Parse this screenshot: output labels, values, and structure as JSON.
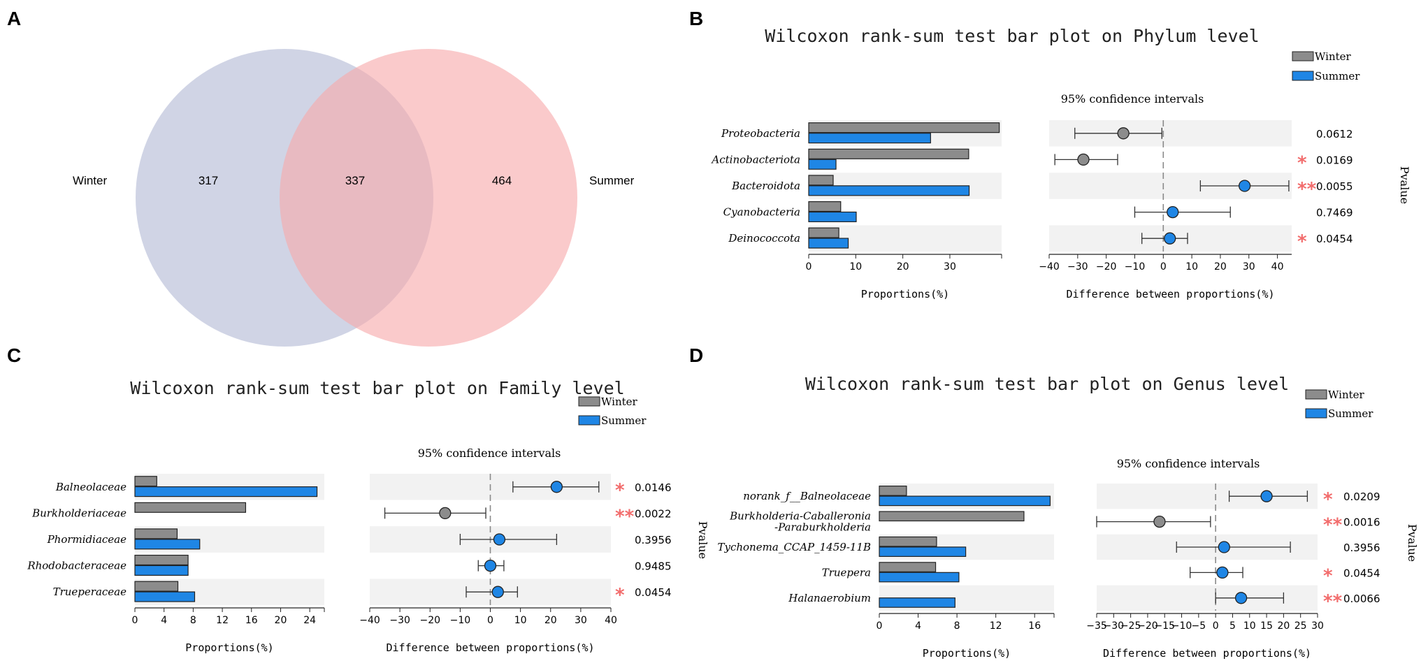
{
  "panel_labels": [
    "A",
    "B",
    "C",
    "D"
  ],
  "venn": {
    "left_label": "Winter",
    "right_label": "Summer",
    "left_only": "317",
    "overlap": "337",
    "right_only": "464",
    "left_color": "#c8cce0",
    "right_color": "#f7a9ab"
  },
  "colors": {
    "winter": "#8c8c8c",
    "summer": "#1f86e5",
    "stripe": "#f2f2f2",
    "significance": "#f26d6d"
  },
  "chart_data": [
    {
      "type": "bar",
      "panel": "B",
      "title": "Wilcoxon rank-sum test bar plot on Phylum level",
      "legend": [
        "Winter",
        "Summer"
      ],
      "ci_label": "95% confidence intervals",
      "xlabel": "Proportions(%)",
      "xlabel_diff": "Difference between proportions(%)",
      "pvalue_label": "Pvalue",
      "categories": [
        "Proteobacteria",
        "Actinobacteriota",
        "Bacteroidota",
        "Cyanobacteria",
        "Deinococcota"
      ],
      "series": [
        {
          "name": "Winter",
          "values": [
            40.5,
            34.0,
            5.2,
            6.8,
            6.4
          ]
        },
        {
          "name": "Summer",
          "values": [
            25.9,
            5.8,
            34.1,
            10.1,
            8.4
          ]
        }
      ],
      "xlim": [
        0,
        41
      ],
      "xticks": [
        "0",
        "10",
        "20",
        "30"
      ],
      "diff": {
        "estimates": [
          -14,
          -28,
          28.5,
          3.3,
          2.3
        ],
        "ci_low": [
          -31,
          -38,
          13,
          -10,
          -7.5
        ],
        "ci_high": [
          -0.5,
          -16,
          44,
          23.5,
          8.5
        ],
        "xlim": [
          -40,
          45
        ],
        "xticks": [
          "-40",
          "-30",
          "-20",
          "-10",
          "0",
          "10",
          "20",
          "30",
          "40"
        ]
      },
      "pvalues": [
        "0.0612",
        "0.0169",
        "0.0055",
        "0.7469",
        "0.0454"
      ],
      "significance": [
        "",
        "*",
        "**",
        "",
        "*"
      ]
    },
    {
      "type": "bar",
      "panel": "C",
      "title": "Wilcoxon rank-sum test bar plot on Family level",
      "legend": [
        "Winter",
        "Summer"
      ],
      "ci_label": "95% confidence intervals",
      "xlabel": "Proportions(%)",
      "xlabel_diff": "Difference between proportions(%)",
      "pvalue_label": "Pvalue",
      "categories": [
        "Balneolaceae",
        "Burkholderiaceae",
        "Phormidiaceae",
        "Rhodobacteraceae",
        "Trueperaceae"
      ],
      "series": [
        {
          "name": "Winter",
          "values": [
            3.0,
            15.2,
            5.8,
            7.3,
            5.9
          ]
        },
        {
          "name": "Summer",
          "values": [
            25.0,
            0,
            8.9,
            7.3,
            8.2
          ]
        }
      ],
      "xlim": [
        0,
        26
      ],
      "xticks": [
        "0",
        "4",
        "8",
        "12",
        "16",
        "20",
        "24"
      ],
      "diff": {
        "estimates": [
          22,
          -15,
          3,
          0,
          2.5
        ],
        "ci_low": [
          7.5,
          -35,
          -10,
          -4,
          -8
        ],
        "ci_high": [
          36,
          -1.5,
          22,
          4.5,
          9
        ],
        "xlim": [
          -40,
          40
        ],
        "xticks": [
          "-40",
          "-30",
          "-20",
          "-10",
          "0",
          "10",
          "20",
          "30",
          "40"
        ]
      },
      "pvalues": [
        "0.0146",
        "0.0022",
        "0.3956",
        "0.9485",
        "0.0454"
      ],
      "significance": [
        "*",
        "**",
        "",
        "",
        "*"
      ]
    },
    {
      "type": "bar",
      "panel": "D",
      "title": "Wilcoxon rank-sum test bar plot on Genus level",
      "legend": [
        "Winter",
        "Summer"
      ],
      "ci_label": "95% confidence intervals",
      "xlabel": "Proportions(%)",
      "xlabel_diff": "Difference between proportions(%)",
      "pvalue_label": "Pvalue",
      "categories": [
        "norank_f__Balneolaceae",
        "Burkholderia-Caballeronia\n-Paraburkholderia",
        "Tychonema_CCAP_1459-11B",
        "Truepera",
        "Halanaerobium"
      ],
      "series": [
        {
          "name": "Winter",
          "values": [
            2.8,
            14.9,
            5.9,
            5.8,
            0
          ]
        },
        {
          "name": "Summer",
          "values": [
            17.6,
            0,
            8.9,
            8.2,
            7.8
          ]
        }
      ],
      "xlim": [
        0,
        18
      ],
      "xticks": [
        "0",
        "4",
        "8",
        "12",
        "16"
      ],
      "diff": {
        "estimates": [
          15,
          -16.5,
          2.5,
          2,
          7.5
        ],
        "ci_low": [
          4,
          -35,
          -11.5,
          -7.5,
          0
        ],
        "ci_high": [
          27,
          -1.5,
          22,
          8,
          20
        ],
        "xlim": [
          -35,
          30
        ],
        "xticks": [
          "-35",
          "-30",
          "-25",
          "-20",
          "-15",
          "-10",
          "-5",
          "0",
          "5",
          "10",
          "15",
          "20",
          "25",
          "30"
        ]
      },
      "pvalues": [
        "0.0209",
        "0.0016",
        "0.3956",
        "0.0454",
        "0.0066"
      ],
      "significance": [
        "*",
        "**",
        "",
        "*",
        "**"
      ]
    }
  ]
}
